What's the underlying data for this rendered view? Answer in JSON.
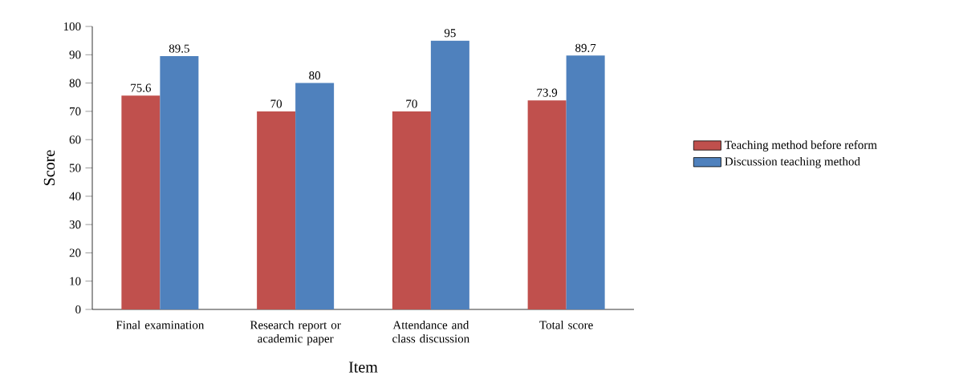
{
  "chart_data": {
    "type": "bar",
    "xlabel": "Item",
    "ylabel": "Score",
    "categories": [
      "Final examination",
      "Research report or academic paper",
      "Attendance and class discussion",
      "Total score"
    ],
    "series": [
      {
        "name": "Teaching method before reform",
        "color": "#c0504d",
        "values": [
          75.6,
          70,
          70,
          73.9
        ]
      },
      {
        "name": "Discussion teaching method",
        "color": "#4f81bd",
        "values": [
          89.5,
          80,
          95,
          89.7
        ]
      }
    ],
    "ylim": [
      0,
      100
    ],
    "yticks": [
      0,
      10,
      20,
      30,
      40,
      50,
      60,
      70,
      80,
      90,
      100
    ],
    "data_labels": true,
    "legend": "right",
    "grid": false
  }
}
